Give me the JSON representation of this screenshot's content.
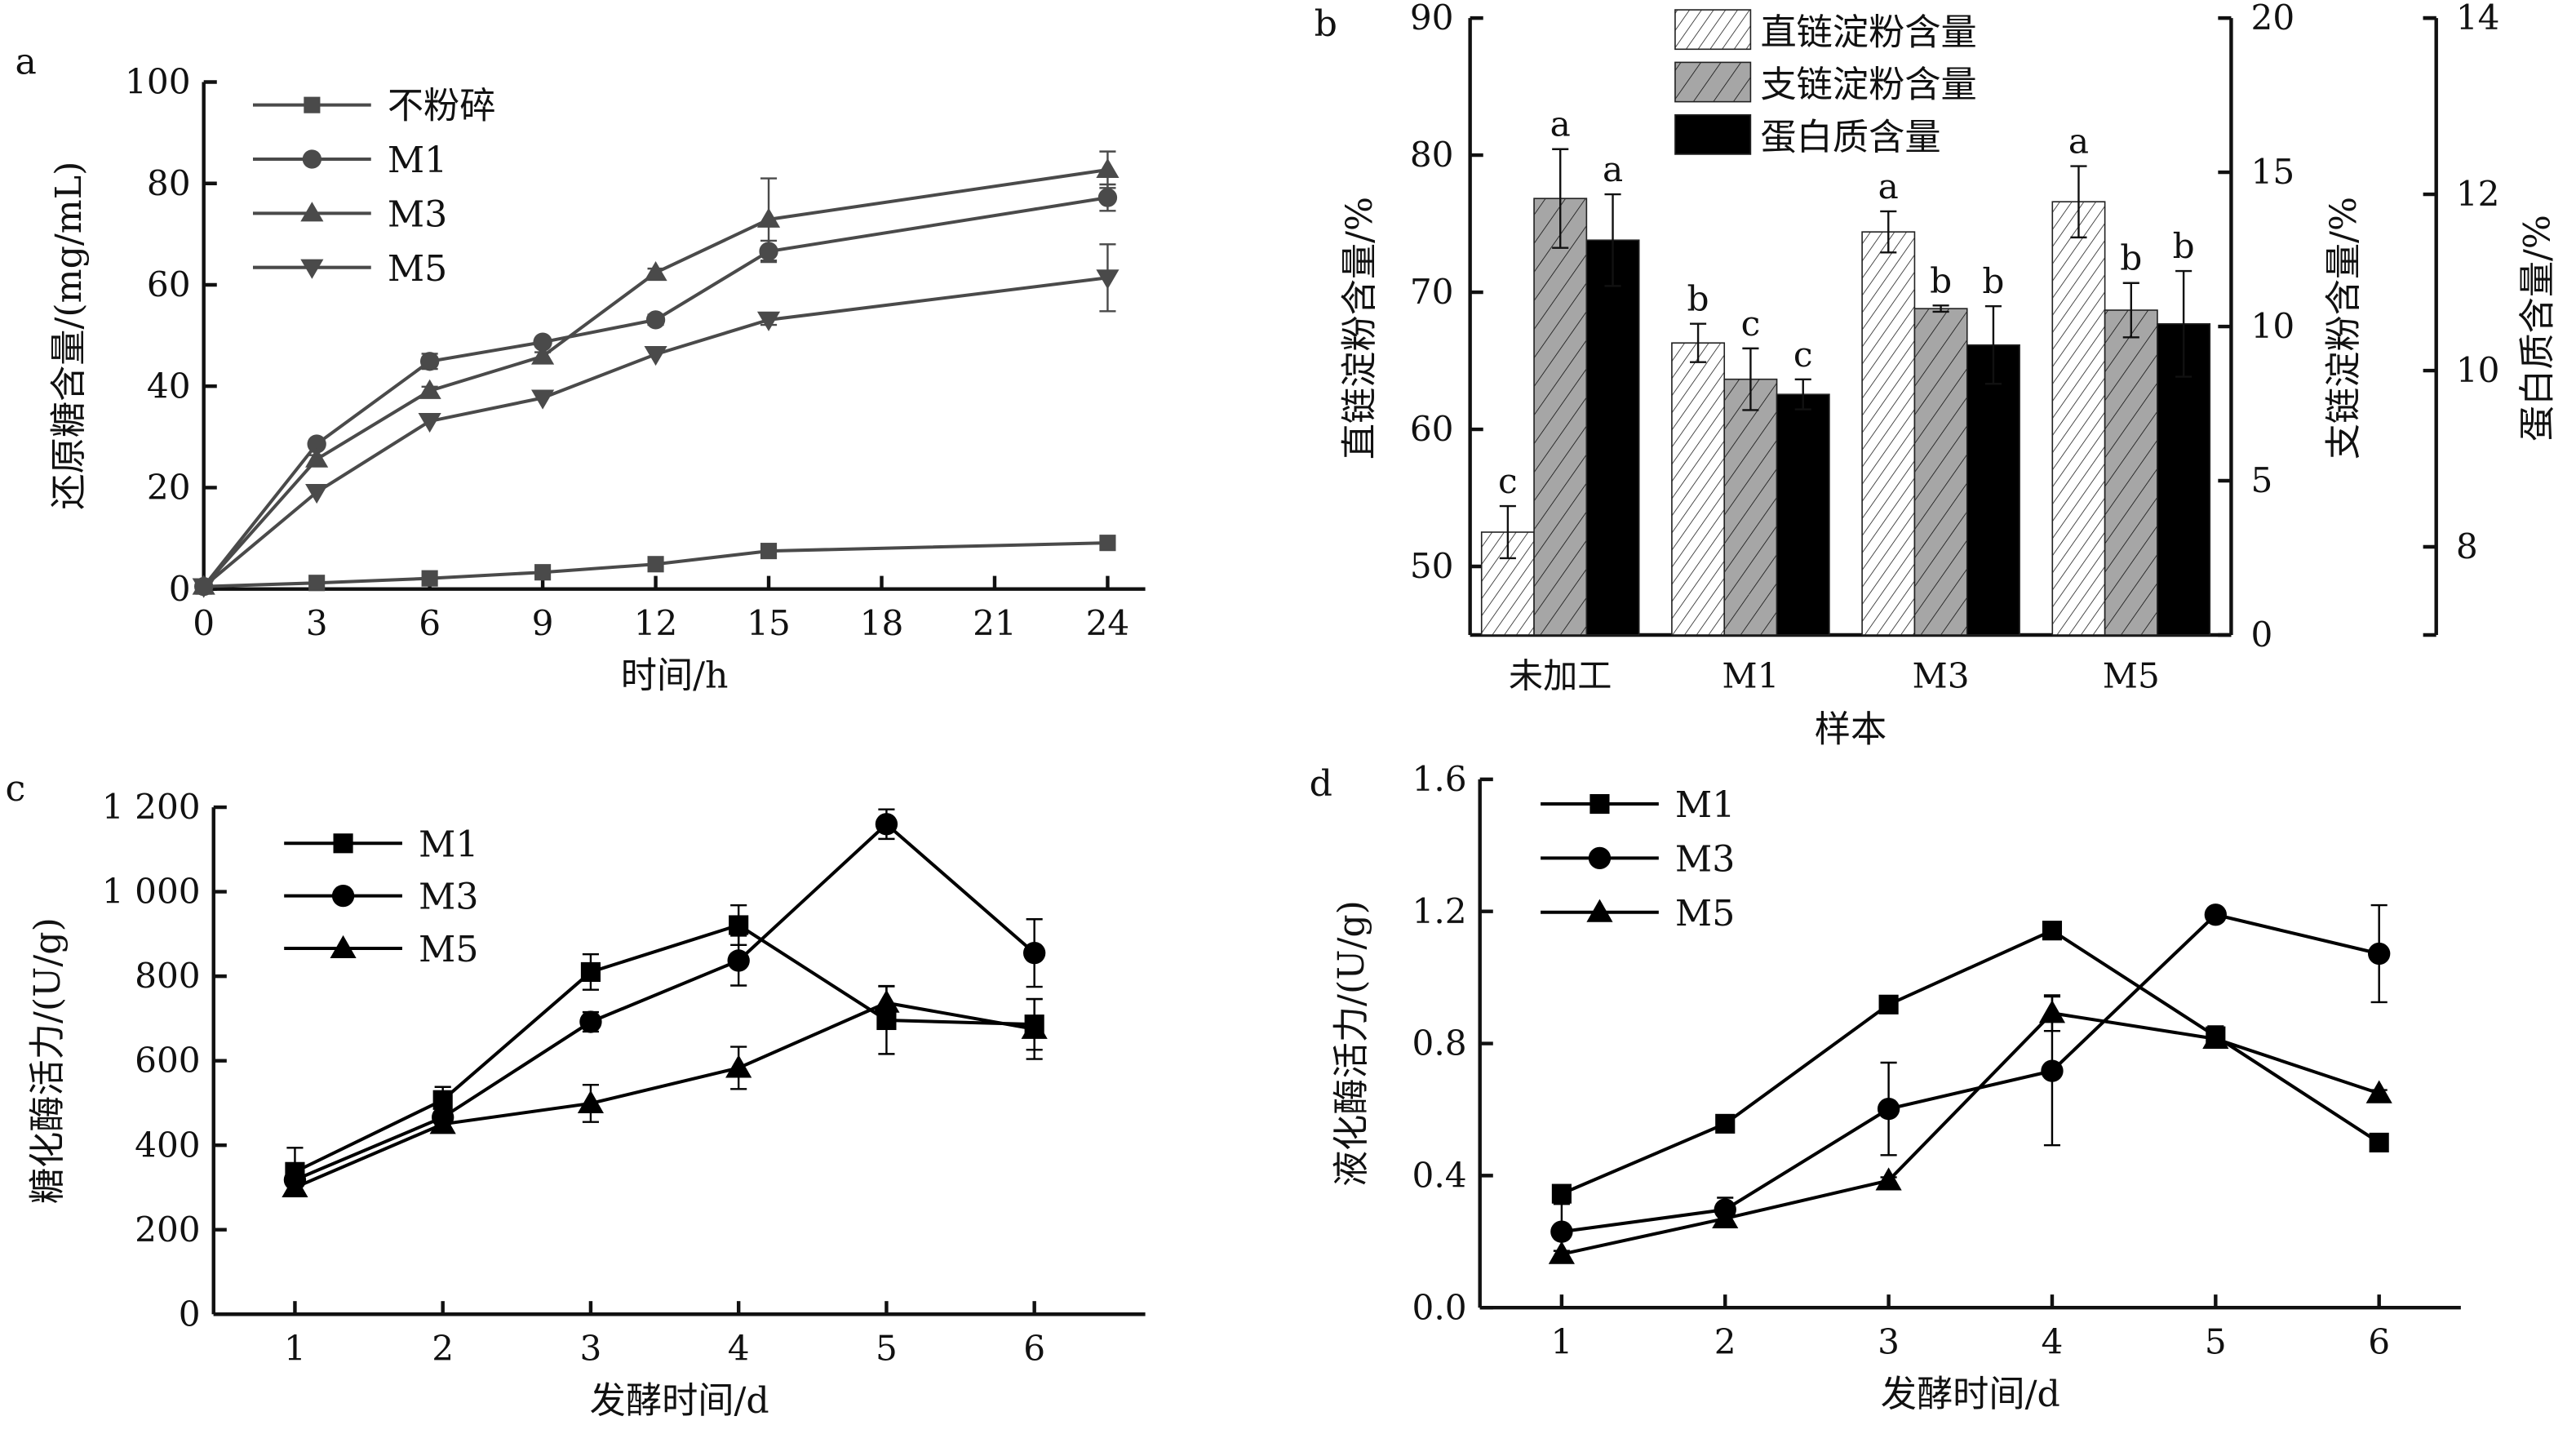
{
  "chart_data": [
    {
      "panel": "a",
      "type": "line",
      "xlabel": "时间/h",
      "ylabel": "还原糖含量/(mg/mL)",
      "x": [
        0,
        3,
        6,
        9,
        12,
        15,
        24
      ],
      "xticks": [
        0,
        3,
        6,
        9,
        12,
        15,
        18,
        21,
        24
      ],
      "yticks": [
        0,
        20,
        40,
        60,
        80,
        100
      ],
      "xlim": [
        0,
        25
      ],
      "ylim": [
        0,
        100
      ],
      "color": "#4a4a4a",
      "legend_position": "top-left",
      "series": [
        {
          "name": "不粉碎",
          "marker": "square",
          "values": [
            0.5,
            1.2,
            2.1,
            3.3,
            4.9,
            7.5,
            9.1
          ],
          "err": [
            0,
            0.3,
            0.3,
            0.3,
            0.4,
            0.5,
            0.5
          ]
        },
        {
          "name": "M1",
          "marker": "circle",
          "values": [
            0.5,
            28.6,
            44.9,
            48.7,
            53.1,
            66.6,
            77.2
          ],
          "err": [
            0,
            0.8,
            1.5,
            0.8,
            1.0,
            2.1,
            2.6
          ]
        },
        {
          "name": "M3",
          "marker": "triangle-up",
          "values": [
            0.5,
            25.6,
            39.1,
            45.9,
            62.4,
            72.9,
            82.7
          ],
          "err": [
            0,
            0.8,
            0.8,
            0.8,
            0.8,
            8.1,
            3.6
          ]
        },
        {
          "name": "M5",
          "marker": "triangle-down",
          "values": [
            0.5,
            19.1,
            33.1,
            37.7,
            46.3,
            53.1,
            61.4
          ],
          "err": [
            0,
            0.5,
            0.5,
            0.5,
            0.5,
            1.0,
            6.6
          ]
        }
      ]
    },
    {
      "panel": "b",
      "type": "bar",
      "xlabel": "样本",
      "categories": [
        "未加工",
        "M1",
        "M3",
        "M5"
      ],
      "axes": [
        {
          "label": "直链淀粉含量/%",
          "side": "left",
          "ylim": [
            45,
            90
          ],
          "yticks": [
            50,
            60,
            70,
            80,
            90
          ]
        },
        {
          "label": "支链淀粉含量/%",
          "side": "right",
          "ylim": [
            0,
            20
          ],
          "yticks": [
            0,
            5,
            10,
            15,
            20
          ]
        },
        {
          "label": "蛋白质含量/%",
          "side": "right-outer",
          "ylim": [
            7,
            14
          ],
          "yticks": [
            8,
            10,
            12,
            14
          ]
        }
      ],
      "legend_position": "top-right",
      "series": [
        {
          "name": "直链淀粉含量",
          "axis": 0,
          "fill": "#ffffff",
          "hatch": "fine",
          "values": [
            52.5,
            66.3,
            74.4,
            76.6
          ],
          "err": [
            1.9,
            1.4,
            1.5,
            2.6
          ],
          "letters": [
            "c",
            "b",
            "a",
            "a"
          ]
        },
        {
          "name": "支链淀粉含量",
          "axis": 1,
          "fill": "#a6a6a6",
          "hatch": "wide",
          "values": [
            14.15,
            8.29,
            10.58,
            10.53
          ],
          "err": [
            1.6,
            1.0,
            0.1,
            0.88
          ],
          "letters": [
            "a",
            "c",
            "b",
            "b"
          ]
        },
        {
          "name": "蛋白质含量",
          "axis": 2,
          "fill": "#000000",
          "hatch": "none",
          "values": [
            11.48,
            9.73,
            10.29,
            10.53
          ],
          "err": [
            0.52,
            0.17,
            0.44,
            0.6
          ],
          "letters": [
            "a",
            "c",
            "b",
            "b"
          ]
        }
      ]
    },
    {
      "panel": "c",
      "type": "line",
      "xlabel": "发酵时间/d",
      "ylabel": "糖化酶活力/(U/g)",
      "x": [
        1,
        2,
        3,
        4,
        5,
        6
      ],
      "xticks": [
        1,
        2,
        3,
        4,
        5,
        6
      ],
      "yticks": [
        0,
        200,
        400,
        600,
        800,
        1000,
        1200
      ],
      "ytick_labels": [
        "0",
        "200",
        "400",
        "600",
        "800",
        "1 000",
        "1 200"
      ],
      "xlim": [
        0.45,
        6.75
      ],
      "ylim": [
        0,
        1200
      ],
      "color": "#000000",
      "legend_position": "top-left",
      "series": [
        {
          "name": "M1",
          "marker": "square",
          "values": [
            337,
            507,
            810,
            921,
            696,
            686
          ],
          "err": [
            57,
            31,
            42,
            47,
            80,
            60
          ]
        },
        {
          "name": "M3",
          "marker": "circle",
          "values": [
            318,
            466,
            692,
            837,
            1160,
            855
          ],
          "err": [
            15,
            15,
            23,
            59,
            35,
            80
          ]
        },
        {
          "name": "M5",
          "marker": "triangle-up",
          "values": [
            300,
            450,
            499,
            583,
            737,
            675
          ],
          "err": [
            15,
            10,
            44,
            50,
            40,
            71
          ]
        }
      ]
    },
    {
      "panel": "d",
      "type": "line",
      "xlabel": "发酵时间/d",
      "ylabel": "液化酶活力/(U/g)",
      "x": [
        1,
        2,
        3,
        4,
        5,
        6
      ],
      "xticks": [
        1,
        2,
        3,
        4,
        5,
        6
      ],
      "yticks": [
        0.0,
        0.4,
        0.8,
        1.2,
        1.6
      ],
      "ytick_labels": [
        "0.0",
        "0.4",
        "0.8",
        "1.2",
        "1.6"
      ],
      "xlim": [
        0.5,
        6.5
      ],
      "ylim": [
        0,
        1.6
      ],
      "color": "#000000",
      "legend_position": "top-left",
      "series": [
        {
          "name": "M1",
          "marker": "square",
          "values": [
            0.345,
            0.557,
            0.918,
            1.142,
            0.822,
            0.5
          ],
          "err": [
            0.01,
            0.01,
            0.01,
            0.01,
            0.03,
            0.01
          ]
        },
        {
          "name": "M3",
          "marker": "circle",
          "values": [
            0.23,
            0.297,
            0.602,
            0.717,
            1.19,
            1.072
          ],
          "err": [
            0.084,
            0.036,
            0.14,
            0.225,
            0.02,
            0.147
          ]
        },
        {
          "name": "M5",
          "marker": "triangle-up",
          "values": [
            0.162,
            0.27,
            0.385,
            0.892,
            0.814,
            0.649
          ],
          "err": [
            0.01,
            0.01,
            0.01,
            0.054,
            0.01,
            0.01
          ]
        }
      ]
    }
  ]
}
